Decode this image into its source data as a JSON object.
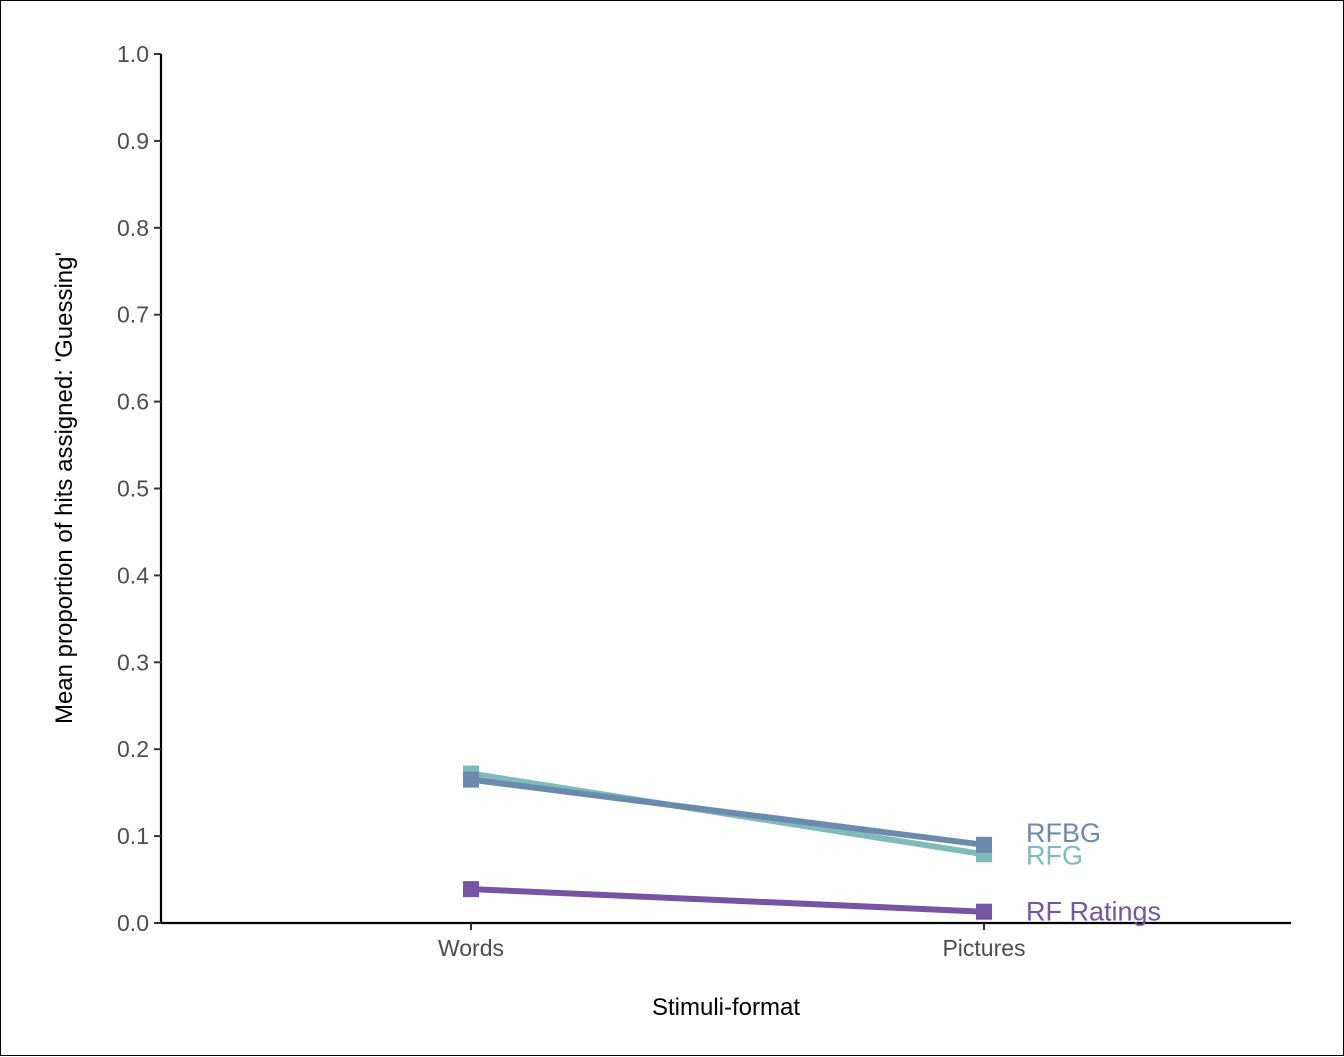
{
  "chart_data": {
    "type": "line",
    "title": "",
    "xlabel": "Stimuli-format",
    "ylabel": "Mean proportion of hits assigned:  'Guessing'",
    "categories": [
      "Words",
      "Pictures"
    ],
    "ylim": [
      0,
      1
    ],
    "yticks": [
      "0.0",
      "0.1",
      "0.2",
      "0.3",
      "0.4",
      "0.5",
      "0.6",
      "0.7",
      "0.8",
      "0.9",
      "1.0"
    ],
    "grid": false,
    "legend": "none (direct labels at right end of lines)",
    "series": [
      {
        "name": "RFG",
        "values": [
          0.172,
          0.079
        ],
        "color": "#7fbbbb"
      },
      {
        "name": "RFBG",
        "values": [
          0.165,
          0.09
        ],
        "color": "#6b8bae"
      },
      {
        "name": "RF Ratings",
        "values": [
          0.039,
          0.013
        ],
        "color": "#7554a3"
      }
    ]
  }
}
